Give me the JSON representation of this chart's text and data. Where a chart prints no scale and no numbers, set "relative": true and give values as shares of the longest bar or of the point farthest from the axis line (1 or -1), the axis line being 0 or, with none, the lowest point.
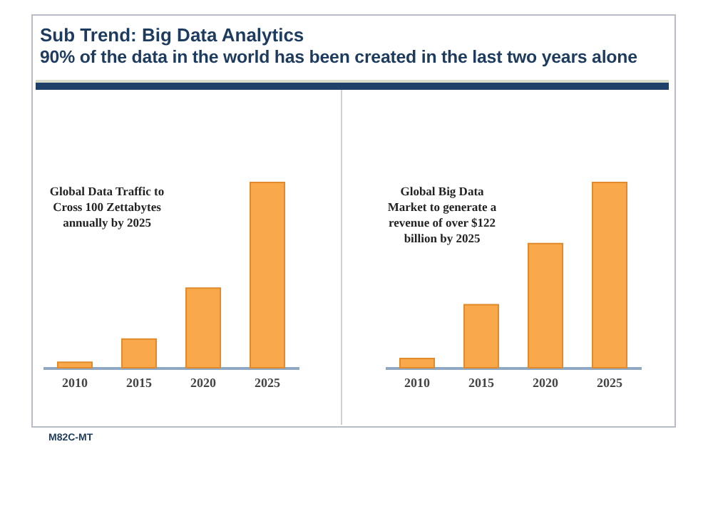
{
  "chart_data": [
    {
      "type": "other",
      "title": "Sub Trend: Big Data Analytics",
      "subtitle": "90% of the data in the world has been created in the last two years alone",
      "annotations": [
        "M82C-MT"
      ]
    },
    {
      "type": "bar",
      "title": "Global Data Traffic to Cross 100 Zettabytes annually by 2025",
      "categories": [
        "2010",
        "2015",
        "2020",
        "2025"
      ],
      "values": [
        0.03,
        0.155,
        0.43,
        1
      ],
      "color": "#f9a94b",
      "relative": true
    },
    {
      "type": "bar",
      "title": "Global Big Data Market to generate a revenue of over $122 billion by 2025",
      "categories": [
        "2010",
        "2015",
        "2020",
        "2025"
      ],
      "values": [
        0.05,
        0.34,
        0.67,
        1
      ],
      "color": "#f9a94b",
      "relative": true
    }
  ]
}
